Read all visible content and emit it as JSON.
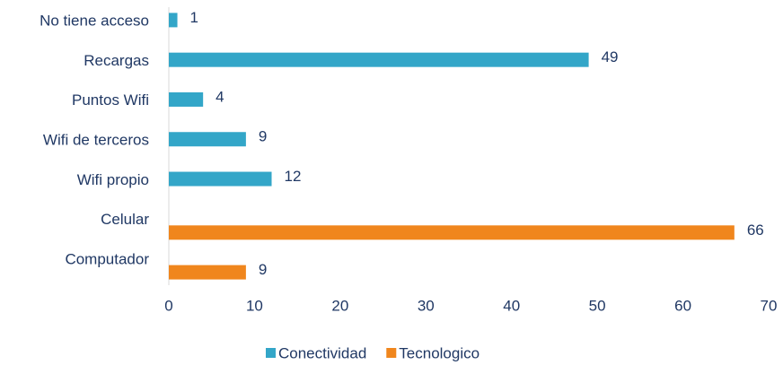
{
  "chart_data": {
    "type": "bar",
    "orientation": "horizontal",
    "categories": [
      "No tiene acceso",
      "Recargas",
      "Puntos Wifi",
      "Wifi de terceros",
      "Wifi propio",
      "Celular",
      "Computador"
    ],
    "series": [
      {
        "name": "Conectividad",
        "color": "#33a6c8",
        "values": [
          1,
          49,
          4,
          9,
          12,
          null,
          null
        ]
      },
      {
        "name": "Tecnologico",
        "color": "#f0861d",
        "values": [
          null,
          null,
          null,
          null,
          null,
          66,
          9
        ]
      }
    ],
    "xlim": [
      0,
      70
    ],
    "xticks": [
      0,
      10,
      20,
      30,
      40,
      50,
      60,
      70
    ],
    "legend": "bottom"
  }
}
